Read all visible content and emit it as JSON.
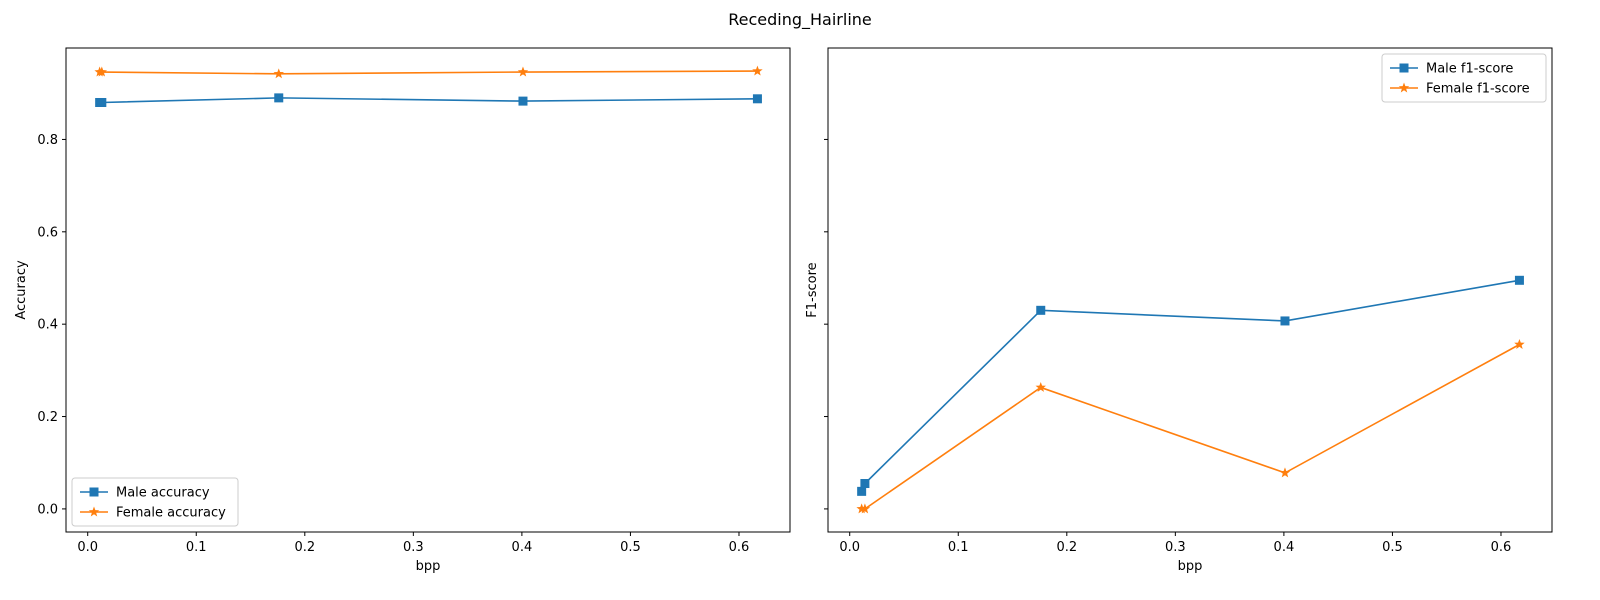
{
  "chart_data": {
    "title": "Receding_Hairline",
    "panels": [
      {
        "type": "line",
        "xlabel": "bpp",
        "ylabel": "Accuracy",
        "xlim": [
          -0.02,
          0.647
        ],
        "ylim": [
          -0.05,
          0.998
        ],
        "xticks": [
          0.0,
          0.1,
          0.2,
          0.3,
          0.4,
          0.5,
          0.6
        ],
        "xtick_labels": [
          "0.0",
          "0.1",
          "0.2",
          "0.3",
          "0.4",
          "0.5",
          "0.6"
        ],
        "yticks": [
          0.0,
          0.2,
          0.4,
          0.6,
          0.8
        ],
        "ytick_labels": [
          "0.0",
          "0.2",
          "0.4",
          "0.6",
          "0.8"
        ],
        "show_yticklabels": true,
        "grid": false,
        "legend_position": "lower-left",
        "series": [
          {
            "name": "Male accuracy",
            "color": "#1f77b4",
            "marker": "square",
            "x": [
              0.011,
              0.013,
              0.176,
              0.401,
              0.617
            ],
            "y": [
              0.88,
              0.88,
              0.89,
              0.883,
              0.888
            ]
          },
          {
            "name": "Female accuracy",
            "color": "#ff7f0e",
            "marker": "star",
            "x": [
              0.011,
              0.013,
              0.176,
              0.401,
              0.617
            ],
            "y": [
              0.946,
              0.946,
              0.942,
              0.946,
              0.948
            ]
          }
        ]
      },
      {
        "type": "line",
        "xlabel": "bpp",
        "ylabel": "F1-score",
        "xlim": [
          -0.02,
          0.647
        ],
        "ylim": [
          -0.05,
          0.998
        ],
        "xticks": [
          0.0,
          0.1,
          0.2,
          0.3,
          0.4,
          0.5,
          0.6
        ],
        "xtick_labels": [
          "0.0",
          "0.1",
          "0.2",
          "0.3",
          "0.4",
          "0.5",
          "0.6"
        ],
        "yticks": [
          0.0,
          0.2,
          0.4,
          0.6,
          0.8
        ],
        "ytick_labels": [],
        "show_yticklabels": false,
        "grid": false,
        "legend_position": "upper-right",
        "series": [
          {
            "name": "Male f1-score",
            "color": "#1f77b4",
            "marker": "square",
            "x": [
              0.011,
              0.014,
              0.176,
              0.401,
              0.617
            ],
            "y": [
              0.038,
              0.055,
              0.43,
              0.407,
              0.495
            ]
          },
          {
            "name": "Female f1-score",
            "color": "#ff7f0e",
            "marker": "star",
            "x": [
              0.011,
              0.014,
              0.176,
              0.401,
              0.617
            ],
            "y": [
              0.0,
              0.0,
              0.263,
              0.078,
              0.356
            ]
          }
        ]
      }
    ]
  }
}
